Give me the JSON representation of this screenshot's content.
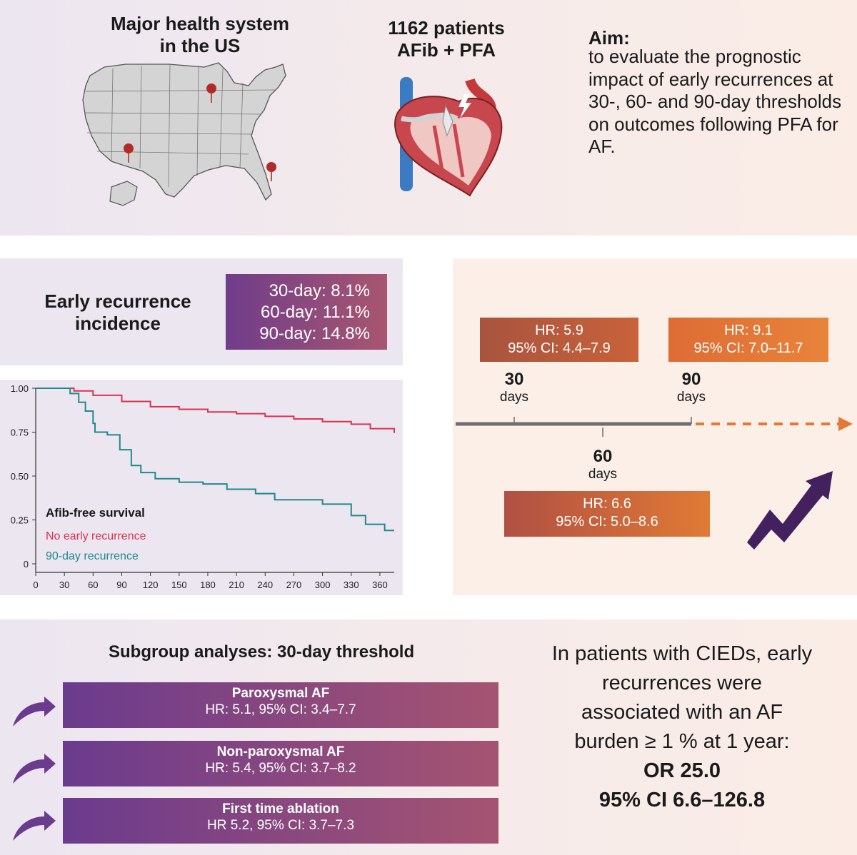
{
  "top": {
    "system_title": "Major health system in the US",
    "patients_title": "1162 patients\nAFib + PFA",
    "aim_heading": "Aim:",
    "aim_text": "to evaluate the prognostic impact of early recurrences at 30-, 60- and 90-day thresholds on outcomes following PFA for AF."
  },
  "incidence": {
    "label": "Early recurrence incidence",
    "lines": [
      "30-day: 8.1%",
      "60-day: 11.1%",
      "90-day: 14.8%"
    ]
  },
  "chart_data": {
    "type": "line",
    "title": "",
    "xlabel": "",
    "ylabel": "",
    "xlim": [
      0,
      375
    ],
    "ylim": [
      0,
      1.0
    ],
    "x_ticks": [
      0,
      30,
      60,
      90,
      120,
      150,
      180,
      210,
      240,
      270,
      300,
      330,
      360
    ],
    "y_ticks": [
      0,
      0.25,
      0.5,
      0.75,
      1.0
    ],
    "y_tick_labels": [
      "0",
      "0.25",
      "0.50",
      "0.75",
      "1.00"
    ],
    "grid": false,
    "legend_title": "Afib-free survival",
    "legend_position": "bottom-left",
    "series": [
      {
        "name": "No early recurrence",
        "color": "#d9334f",
        "points": [
          [
            0,
            1.0
          ],
          [
            30,
            1.0
          ],
          [
            40,
            0.985
          ],
          [
            60,
            0.96
          ],
          [
            90,
            0.925
          ],
          [
            120,
            0.895
          ],
          [
            150,
            0.88
          ],
          [
            180,
            0.865
          ],
          [
            210,
            0.855
          ],
          [
            240,
            0.84
          ],
          [
            270,
            0.825
          ],
          [
            300,
            0.81
          ],
          [
            330,
            0.795
          ],
          [
            350,
            0.77
          ],
          [
            375,
            0.745
          ]
        ]
      },
      {
        "name": "90-day recurrence",
        "color": "#1e8a8c",
        "points": [
          [
            0,
            1.0
          ],
          [
            30,
            1.0
          ],
          [
            36,
            0.97
          ],
          [
            45,
            0.92
          ],
          [
            52,
            0.87
          ],
          [
            60,
            0.8
          ],
          [
            62,
            0.75
          ],
          [
            75,
            0.735
          ],
          [
            88,
            0.65
          ],
          [
            100,
            0.56
          ],
          [
            110,
            0.52
          ],
          [
            125,
            0.485
          ],
          [
            150,
            0.465
          ],
          [
            175,
            0.455
          ],
          [
            200,
            0.425
          ],
          [
            230,
            0.4
          ],
          [
            250,
            0.365
          ],
          [
            300,
            0.34
          ],
          [
            330,
            0.275
          ],
          [
            345,
            0.225
          ],
          [
            365,
            0.19
          ],
          [
            375,
            0.19
          ]
        ]
      }
    ]
  },
  "timeline": {
    "markers": [
      {
        "num": "30",
        "unit": "days"
      },
      {
        "num": "60",
        "unit": "days"
      },
      {
        "num": "90",
        "unit": "days"
      }
    ],
    "hr30": {
      "line1": "HR: 5.9",
      "line2": "95% CI: 4.4–7.9"
    },
    "hr60": {
      "line1": "HR: 6.6",
      "line2": "95% CI: 5.0–8.6"
    },
    "hr90": {
      "line1": "HR: 9.1",
      "line2": "95% CI: 7.0–11.7"
    }
  },
  "subgroups": {
    "title": "Subgroup analyses: 30-day threshold",
    "items": [
      {
        "name": "Paroxysmal AF",
        "stat": "HR: 5.1, 95% CI: 3.4–7.7"
      },
      {
        "name": "Non-paroxysmal AF",
        "stat": "HR: 5.4, 95% CI: 3.7–8.2"
      },
      {
        "name": "First time ablation",
        "stat": "HR 5.2, 95% CI: 3.7–7.3"
      }
    ]
  },
  "conclusion": {
    "text": "In patients with CIEDs, early recurrences were associated with an AF burden ≥ 1 % at 1 year:",
    "or": "OR 25.0",
    "ci": "95% CI 6.6–126.8"
  },
  "colors": {
    "red_line": "#d9334f",
    "teal_line": "#1e8a8c",
    "purple": "#6b3b8d",
    "orange": "#e07a35"
  }
}
